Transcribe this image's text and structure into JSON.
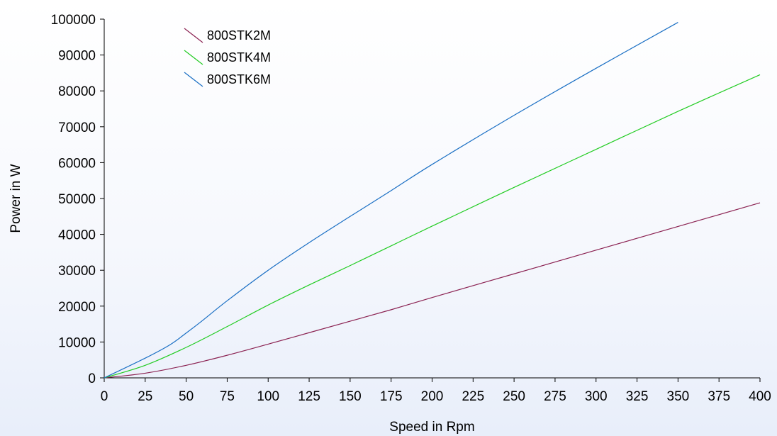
{
  "chart_data": {
    "type": "line",
    "xlabel": "Speed in Rpm",
    "ylabel": "Power in W",
    "xlim": [
      0,
      400
    ],
    "ylim": [
      0,
      100000
    ],
    "x_ticks": [
      0,
      25,
      50,
      75,
      100,
      125,
      150,
      175,
      200,
      225,
      250,
      275,
      300,
      325,
      350,
      375,
      400
    ],
    "y_ticks": [
      0,
      10000,
      20000,
      30000,
      40000,
      50000,
      60000,
      70000,
      80000,
      90000,
      100000
    ],
    "grid": false,
    "legend_position": "top-left",
    "series": [
      {
        "name": "800STK2M",
        "color": "#8b2252",
        "x": [
          0,
          25,
          50,
          75,
          100,
          125,
          150,
          175,
          200,
          250,
          300,
          350,
          400
        ],
        "y": [
          0,
          1300,
          3500,
          6300,
          9400,
          12600,
          15800,
          19000,
          22400,
          29000,
          35600,
          42200,
          48800
        ]
      },
      {
        "name": "800STK4M",
        "color": "#22cc22",
        "x": [
          0,
          25,
          50,
          75,
          100,
          125,
          150,
          175,
          200,
          250,
          300,
          350,
          400
        ],
        "y": [
          0,
          3500,
          8500,
          14300,
          20300,
          25900,
          31300,
          36800,
          42300,
          53100,
          63700,
          74300,
          84500
        ]
      },
      {
        "name": "800STK6M",
        "color": "#1a6fc4",
        "x": [
          0,
          25,
          40,
          50,
          60,
          75,
          100,
          125,
          150,
          175,
          200,
          250,
          300,
          350
        ],
        "y": [
          0,
          5500,
          9200,
          12500,
          16000,
          21500,
          30000,
          37700,
          45000,
          52200,
          59500,
          73200,
          86300,
          99100
        ]
      }
    ]
  }
}
